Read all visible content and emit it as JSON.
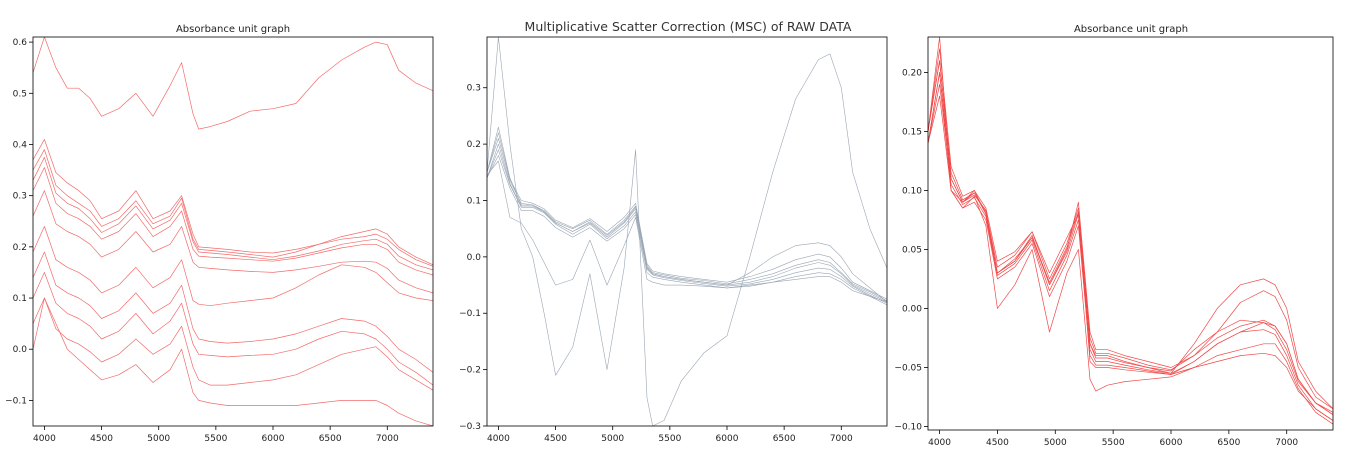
{
  "chart_data": [
    {
      "type": "line",
      "title": "Absorbance unit graph",
      "xlim": [
        3900,
        7400
      ],
      "ylim": [
        -0.15,
        0.61
      ],
      "xticks": [
        4000,
        4500,
        5000,
        5500,
        6000,
        6500,
        7000
      ],
      "yticks": [
        -0.1,
        0.0,
        0.1,
        0.2,
        0.3,
        0.4,
        0.5,
        0.6
      ],
      "ytick_labels": [
        "−0.1",
        "0.0",
        "0.1",
        "0.2",
        "0.3",
        "0.4",
        "0.5",
        "0.6"
      ],
      "color": "#f26b6b",
      "x": [
        3900,
        4000,
        4100,
        4200,
        4300,
        4400,
        4500,
        4650,
        4800,
        4950,
        5100,
        5200,
        5300,
        5350,
        5450,
        5600,
        5800,
        6000,
        6200,
        6400,
        6600,
        6800,
        6900,
        7000,
        7100,
        7250,
        7400
      ],
      "series": [
        {
          "values": [
            0.54,
            0.61,
            0.55,
            0.51,
            0.51,
            0.49,
            0.455,
            0.47,
            0.5,
            0.455,
            0.515,
            0.56,
            0.46,
            0.43,
            0.435,
            0.445,
            0.465,
            0.47,
            0.48,
            0.53,
            0.565,
            0.59,
            0.6,
            0.595,
            0.545,
            0.52,
            0.505
          ]
        },
        {
          "values": [
            0.37,
            0.41,
            0.345,
            0.325,
            0.31,
            0.29,
            0.255,
            0.27,
            0.31,
            0.255,
            0.27,
            0.3,
            0.225,
            0.2,
            0.198,
            0.195,
            0.19,
            0.188,
            0.195,
            0.205,
            0.215,
            0.22,
            0.225,
            0.215,
            0.195,
            0.175,
            0.162
          ]
        },
        {
          "values": [
            0.35,
            0.39,
            0.32,
            0.3,
            0.285,
            0.27,
            0.24,
            0.255,
            0.29,
            0.245,
            0.26,
            0.295,
            0.215,
            0.195,
            0.193,
            0.19,
            0.185,
            0.18,
            0.19,
            0.205,
            0.22,
            0.23,
            0.235,
            0.225,
            0.2,
            0.18,
            0.165
          ]
        },
        {
          "values": [
            0.33,
            0.375,
            0.305,
            0.285,
            0.275,
            0.255,
            0.228,
            0.245,
            0.28,
            0.235,
            0.252,
            0.285,
            0.21,
            0.19,
            0.188,
            0.185,
            0.18,
            0.175,
            0.182,
            0.192,
            0.205,
            0.212,
            0.215,
            0.205,
            0.182,
            0.165,
            0.155
          ]
        },
        {
          "values": [
            0.31,
            0.355,
            0.285,
            0.265,
            0.255,
            0.24,
            0.215,
            0.23,
            0.265,
            0.22,
            0.24,
            0.27,
            0.195,
            0.182,
            0.18,
            0.178,
            0.175,
            0.172,
            0.178,
            0.188,
            0.198,
            0.205,
            0.205,
            0.195,
            0.17,
            0.155,
            0.145
          ]
        },
        {
          "values": [
            0.26,
            0.31,
            0.245,
            0.23,
            0.22,
            0.205,
            0.18,
            0.195,
            0.23,
            0.19,
            0.205,
            0.24,
            0.17,
            0.16,
            0.158,
            0.155,
            0.152,
            0.15,
            0.155,
            0.162,
            0.17,
            0.172,
            0.17,
            0.158,
            0.135,
            0.12,
            0.11
          ]
        },
        {
          "values": [
            0.19,
            0.24,
            0.175,
            0.16,
            0.15,
            0.135,
            0.11,
            0.125,
            0.16,
            0.12,
            0.14,
            0.175,
            0.095,
            0.088,
            0.085,
            0.09,
            0.095,
            0.1,
            0.12,
            0.145,
            0.165,
            0.16,
            0.15,
            0.13,
            0.11,
            0.1,
            0.095
          ]
        },
        {
          "values": [
            0.14,
            0.19,
            0.125,
            0.11,
            0.1,
            0.085,
            0.06,
            0.075,
            0.11,
            0.07,
            0.09,
            0.125,
            0.04,
            0.02,
            0.015,
            0.012,
            0.015,
            0.02,
            0.03,
            0.045,
            0.06,
            0.055,
            0.045,
            0.025,
            0.0,
            -0.02,
            -0.045
          ]
        },
        {
          "values": [
            0.1,
            0.15,
            0.09,
            0.07,
            0.06,
            0.045,
            0.02,
            0.035,
            0.07,
            0.03,
            0.055,
            0.09,
            0.01,
            -0.01,
            -0.012,
            -0.015,
            -0.012,
            -0.01,
            0.0,
            0.02,
            0.035,
            0.03,
            0.02,
            0.0,
            -0.025,
            -0.045,
            -0.07
          ]
        },
        {
          "values": [
            0.05,
            0.1,
            0.04,
            0.02,
            0.01,
            -0.005,
            -0.025,
            -0.01,
            0.02,
            -0.01,
            0.01,
            0.045,
            -0.035,
            -0.06,
            -0.07,
            -0.07,
            -0.065,
            -0.06,
            -0.05,
            -0.03,
            -0.01,
            0.0,
            0.005,
            -0.015,
            -0.04,
            -0.06,
            -0.08
          ]
        },
        {
          "values": [
            0.0,
            0.1,
            0.05,
            0.0,
            -0.02,
            -0.04,
            -0.06,
            -0.05,
            -0.03,
            -0.065,
            -0.04,
            0.0,
            -0.085,
            -0.1,
            -0.105,
            -0.11,
            -0.11,
            -0.11,
            -0.11,
            -0.105,
            -0.1,
            -0.1,
            -0.1,
            -0.11,
            -0.125,
            -0.14,
            -0.15
          ]
        }
      ]
    },
    {
      "type": "line",
      "title": "Multiplicative Scatter Correction (MSC) of RAW DATA",
      "xlim": [
        3900,
        7400
      ],
      "ylim": [
        -0.3,
        0.39
      ],
      "xticks": [
        4000,
        4500,
        5000,
        5500,
        6000,
        6500,
        7000
      ],
      "yticks": [
        -0.3,
        -0.2,
        -0.1,
        0.0,
        0.1,
        0.2,
        0.3
      ],
      "ytick_labels": [
        "−0.3",
        "−0.2",
        "−0.1",
        "0.0",
        "0.1",
        "0.2",
        "0.3"
      ],
      "color": "#9aa6b4",
      "x": [
        3900,
        4000,
        4100,
        4200,
        4300,
        4400,
        4500,
        4650,
        4800,
        4950,
        5100,
        5200,
        5300,
        5350,
        5450,
        5600,
        5800,
        6000,
        6200,
        6400,
        6600,
        6800,
        6900,
        7000,
        7100,
        7250,
        7400
      ],
      "series": [
        {
          "values": [
            0.14,
            0.2,
            0.13,
            0.09,
            0.09,
            0.08,
            0.06,
            0.045,
            0.06,
            0.035,
            0.06,
            0.085,
            -0.02,
            -0.03,
            -0.035,
            -0.04,
            -0.045,
            -0.05,
            -0.045,
            -0.035,
            -0.02,
            -0.01,
            -0.015,
            -0.03,
            -0.05,
            -0.065,
            -0.08
          ]
        },
        {
          "values": [
            0.15,
            0.21,
            0.135,
            0.095,
            0.092,
            0.082,
            0.062,
            0.05,
            0.065,
            0.04,
            0.065,
            0.09,
            -0.015,
            -0.028,
            -0.032,
            -0.038,
            -0.042,
            -0.048,
            -0.04,
            -0.03,
            -0.015,
            -0.005,
            -0.01,
            -0.028,
            -0.048,
            -0.062,
            -0.078
          ]
        },
        {
          "values": [
            0.14,
            0.19,
            0.128,
            0.088,
            0.088,
            0.078,
            0.058,
            0.04,
            0.058,
            0.032,
            0.055,
            0.08,
            -0.022,
            -0.032,
            -0.037,
            -0.042,
            -0.047,
            -0.052,
            -0.048,
            -0.04,
            -0.028,
            -0.02,
            -0.022,
            -0.035,
            -0.052,
            -0.068,
            -0.082
          ]
        },
        {
          "values": [
            0.15,
            0.22,
            0.138,
            0.1,
            0.095,
            0.085,
            0.065,
            0.052,
            0.068,
            0.045,
            0.07,
            0.095,
            -0.012,
            -0.025,
            -0.03,
            -0.035,
            -0.04,
            -0.045,
            -0.035,
            -0.022,
            -0.005,
            0.005,
            0.0,
            -0.02,
            -0.045,
            -0.06,
            -0.075
          ]
        },
        {
          "values": [
            0.14,
            0.18,
            0.122,
            0.082,
            0.082,
            0.072,
            0.052,
            0.035,
            0.052,
            0.028,
            0.05,
            0.075,
            -0.028,
            -0.036,
            -0.04,
            -0.045,
            -0.05,
            -0.055,
            -0.052,
            -0.045,
            -0.035,
            -0.028,
            -0.03,
            -0.04,
            -0.055,
            -0.07,
            -0.085
          ]
        },
        {
          "values": [
            0.15,
            0.23,
            0.14,
            0.092,
            0.092,
            0.08,
            0.06,
            0.045,
            0.062,
            0.038,
            0.062,
            0.088,
            -0.018,
            -0.03,
            -0.035,
            -0.04,
            -0.045,
            -0.05,
            -0.028,
            0.0,
            0.02,
            0.025,
            0.02,
            0.0,
            -0.03,
            -0.055,
            -0.08
          ]
        },
        {
          "values": [
            0.15,
            0.39,
            0.2,
            0.05,
            0.0,
            -0.1,
            -0.21,
            -0.16,
            -0.03,
            -0.2,
            -0.02,
            0.19,
            -0.25,
            -0.3,
            -0.29,
            -0.22,
            -0.17,
            -0.14,
            0.0,
            0.15,
            0.28,
            0.35,
            0.36,
            0.3,
            0.15,
            0.05,
            -0.02
          ]
        },
        {
          "values": [
            0.145,
            0.17,
            0.07,
            0.06,
            0.03,
            -0.01,
            -0.05,
            -0.04,
            0.03,
            -0.05,
            0.02,
            0.07,
            -0.04,
            -0.045,
            -0.05,
            -0.05,
            -0.052,
            -0.055,
            -0.05,
            -0.045,
            -0.04,
            -0.035,
            -0.035,
            -0.045,
            -0.06,
            -0.07,
            -0.08
          ]
        }
      ]
    },
    {
      "type": "line",
      "title": "Absorbance unit graph",
      "xlim": [
        3900,
        7400
      ],
      "ylim": [
        -0.103,
        0.23
      ],
      "xticks": [
        4000,
        4500,
        5000,
        5500,
        6000,
        6500,
        7000
      ],
      "yticks": [
        -0.1,
        -0.05,
        0.0,
        0.05,
        0.1,
        0.15,
        0.2
      ],
      "ytick_labels": [
        "−0.10",
        "−0.05",
        "0.00",
        "0.05",
        "0.10",
        "0.15",
        "0.20"
      ],
      "color": "#f04848",
      "x": [
        3900,
        4000,
        4100,
        4200,
        4300,
        4400,
        4500,
        4650,
        4800,
        4950,
        5100,
        5200,
        5300,
        5350,
        5450,
        5600,
        5800,
        6000,
        6200,
        6400,
        6600,
        6800,
        6900,
        7000,
        7100,
        7250,
        7400
      ],
      "series": [
        {
          "values": [
            0.14,
            0.2,
            0.11,
            0.09,
            0.1,
            0.08,
            0.03,
            0.04,
            0.06,
            0.02,
            0.05,
            0.09,
            -0.02,
            -0.035,
            -0.035,
            -0.04,
            -0.045,
            -0.05,
            -0.04,
            -0.025,
            -0.015,
            -0.01,
            -0.015,
            -0.03,
            -0.06,
            -0.08,
            -0.09
          ]
        },
        {
          "values": [
            0.15,
            0.21,
            0.115,
            0.092,
            0.098,
            0.082,
            0.035,
            0.045,
            0.065,
            0.025,
            0.055,
            0.085,
            -0.025,
            -0.038,
            -0.038,
            -0.042,
            -0.048,
            -0.052,
            -0.04,
            -0.02,
            0.005,
            0.015,
            0.01,
            -0.01,
            -0.05,
            -0.075,
            -0.085
          ]
        },
        {
          "values": [
            0.14,
            0.19,
            0.105,
            0.088,
            0.094,
            0.078,
            0.028,
            0.038,
            0.058,
            0.015,
            0.045,
            0.075,
            -0.03,
            -0.042,
            -0.042,
            -0.046,
            -0.05,
            -0.055,
            -0.045,
            -0.03,
            -0.02,
            -0.018,
            -0.022,
            -0.04,
            -0.065,
            -0.085,
            -0.095
          ]
        },
        {
          "values": [
            0.15,
            0.22,
            0.12,
            0.095,
            0.1,
            0.085,
            0.04,
            0.048,
            0.065,
            0.03,
            0.06,
            0.08,
            -0.035,
            -0.045,
            -0.045,
            -0.048,
            -0.052,
            -0.055,
            -0.03,
            0.0,
            0.02,
            0.025,
            0.02,
            0.0,
            -0.045,
            -0.07,
            -0.085
          ]
        },
        {
          "values": [
            0.14,
            0.18,
            0.1,
            0.085,
            0.09,
            0.075,
            0.025,
            0.035,
            0.055,
            0.01,
            0.04,
            0.07,
            -0.04,
            -0.048,
            -0.048,
            -0.05,
            -0.053,
            -0.056,
            -0.05,
            -0.04,
            -0.035,
            -0.03,
            -0.03,
            -0.045,
            -0.068,
            -0.088,
            -0.098
          ]
        },
        {
          "values": [
            0.15,
            0.23,
            0.1,
            0.09,
            0.098,
            0.08,
            0.03,
            0.04,
            0.062,
            0.02,
            0.048,
            0.08,
            -0.045,
            -0.05,
            -0.05,
            -0.052,
            -0.054,
            -0.056,
            -0.045,
            -0.03,
            -0.02,
            -0.012,
            -0.015,
            -0.03,
            -0.06,
            -0.08,
            -0.09
          ]
        },
        {
          "values": [
            0.14,
            0.2,
            0.1,
            0.085,
            0.095,
            0.07,
            0.0,
            0.02,
            0.05,
            -0.02,
            0.03,
            0.05,
            -0.06,
            -0.07,
            -0.065,
            -0.062,
            -0.06,
            -0.058,
            -0.05,
            -0.045,
            -0.04,
            -0.038,
            -0.04,
            -0.05,
            -0.07,
            -0.085,
            -0.095
          ]
        },
        {
          "values": [
            0.15,
            0.21,
            0.11,
            0.09,
            0.096,
            0.083,
            0.03,
            0.042,
            0.06,
            0.022,
            0.052,
            0.082,
            -0.03,
            -0.04,
            -0.04,
            -0.045,
            -0.05,
            -0.053,
            -0.035,
            -0.02,
            -0.01,
            -0.012,
            -0.018,
            -0.035,
            -0.062,
            -0.08,
            -0.088
          ]
        }
      ]
    }
  ]
}
